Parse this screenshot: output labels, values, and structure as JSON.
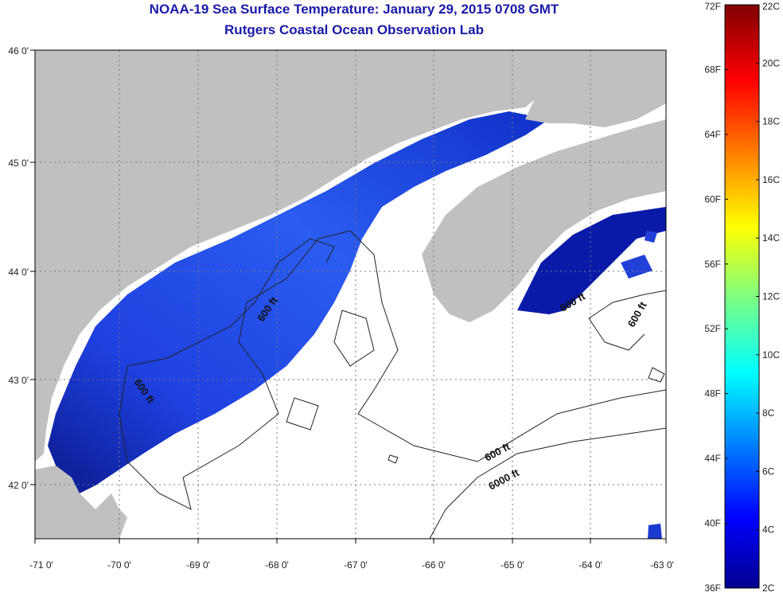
{
  "title": "NOAA-19 Sea Surface Temperature:  January 29, 2015 0708 GMT",
  "subtitle": "Rutgers Coastal Ocean Observation Lab",
  "lat_ticks": [
    "46 0'",
    "45 0'",
    "44 0'",
    "43 0'",
    "42 0'"
  ],
  "lon_ticks": [
    "-71 0'",
    "-70 0'",
    "-69 0'",
    "-68 0'",
    "-67 0'",
    "-66 0'",
    "-65 0'",
    "-64 0'",
    "-63 0'"
  ],
  "contour_labels": [
    "600 ft",
    "600 ft",
    "600 ft",
    "600 ft",
    "6000 ft"
  ],
  "colorbar": {
    "f_labels": [
      "72F",
      "68F",
      "64F",
      "60F",
      "56F",
      "52F",
      "48F",
      "44F",
      "40F",
      "36F"
    ],
    "c_labels": [
      "22C",
      "20C",
      "18C",
      "16C",
      "14C",
      "12C",
      "10C",
      "8C",
      "6C",
      "4C",
      "2C"
    ]
  },
  "colors": {
    "land": "#c0c0c0",
    "title": "#1a1aa8",
    "cold_water": "#1f3fe0",
    "coldest_water": "#0a1a8c"
  }
}
